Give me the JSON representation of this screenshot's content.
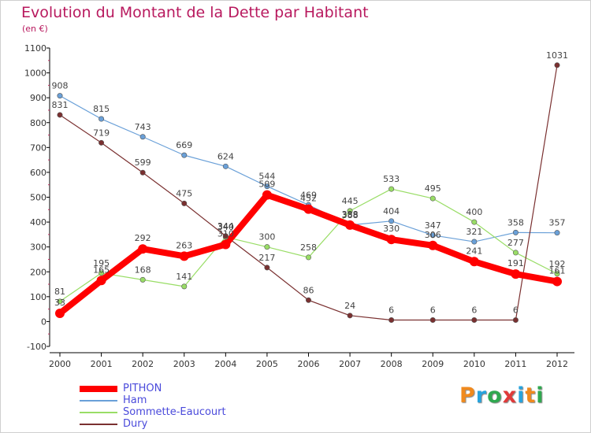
{
  "title": "Evolution du Montant de la Dette par Habitant",
  "subtitle": "(en €)",
  "logo": {
    "text": "Proxiti",
    "colors": [
      "#f08a1e",
      "#27a3dd",
      "#2fa84f",
      "#e03a3a",
      "#27a3dd",
      "#f08a1e",
      "#2fa84f"
    ]
  },
  "chart_data": {
    "type": "line",
    "x": [
      "2000",
      "2001",
      "2002",
      "2003",
      "2004",
      "2005",
      "2006",
      "2007",
      "2008",
      "2009",
      "2010",
      "2011",
      "2012"
    ],
    "ylim": [
      -100,
      1100
    ],
    "yticks": [
      -100,
      0,
      100,
      200,
      300,
      400,
      500,
      600,
      700,
      800,
      900,
      1000,
      1100
    ],
    "grid": false,
    "legend_position": "bottom-left",
    "series": [
      {
        "name": "PITHON",
        "color": "#ff0000",
        "thick": true,
        "values": [
          33,
          165,
          292,
          263,
          310,
          509,
          452,
          388,
          330,
          306,
          241,
          191,
          161
        ],
        "labels": [
          "33",
          "165",
          "292",
          "263",
          "310",
          "509",
          "452",
          "388",
          "330",
          "306",
          "241",
          "191",
          "161"
        ]
      },
      {
        "name": "Ham",
        "color": "#6aa0d8",
        "thick": false,
        "values": [
          908,
          815,
          743,
          669,
          624,
          544,
          469,
          388,
          404,
          347,
          321,
          358,
          357
        ],
        "labels": [
          "908",
          "815",
          "743",
          "669",
          "624",
          "544",
          "469",
          "388",
          "404",
          "347",
          "321",
          "358",
          "357"
        ]
      },
      {
        "name": "Sommette-Eaucourt",
        "color": "#99dd66",
        "thick": false,
        "values": [
          81,
          195,
          168,
          141,
          340,
          300,
          258,
          445,
          533,
          495,
          400,
          277,
          192
        ],
        "labels": [
          "81",
          "195",
          "168",
          "141",
          "340",
          "300",
          "258",
          "445",
          "533",
          "495",
          "400",
          "277",
          "192"
        ]
      },
      {
        "name": "Dury",
        "color": "#7a3030",
        "thick": false,
        "values": [
          831,
          719,
          599,
          475,
          344,
          217,
          86,
          24,
          6,
          6,
          6,
          6,
          1031
        ],
        "labels": [
          "831",
          "719",
          "599",
          "475",
          "344",
          "217",
          "86",
          "24",
          "6",
          "6",
          "6",
          "6",
          "1031"
        ]
      }
    ]
  }
}
